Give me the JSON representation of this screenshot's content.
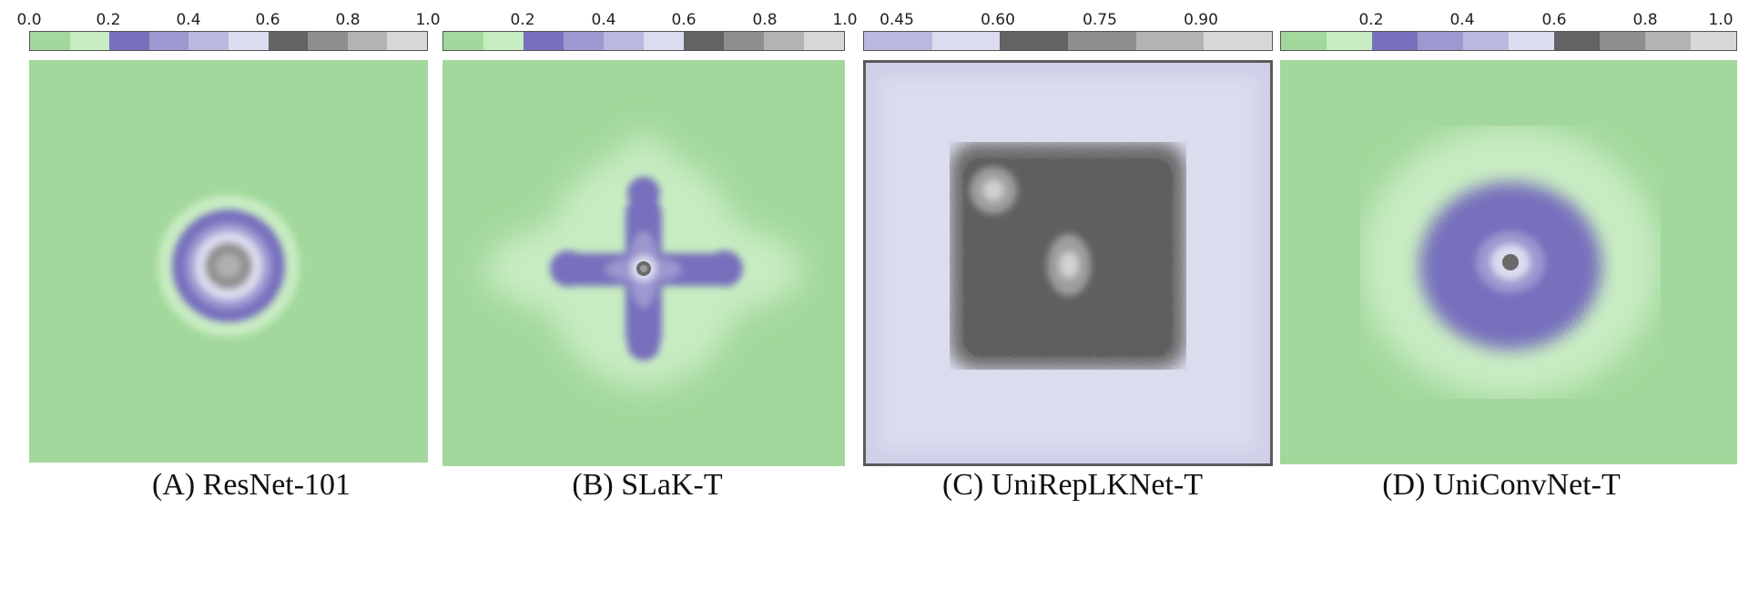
{
  "chart_data": [
    {
      "type": "heatmap",
      "title": "(A) ResNet-101",
      "colorbar": {
        "ticks": [
          "0.0",
          "0.2",
          "0.4",
          "0.6",
          "0.8",
          "1.0"
        ],
        "range": [
          0.0,
          1.0
        ],
        "colors": [
          "#a2d89b",
          "#c8ecc2",
          "#7770bd",
          "#9d98d0",
          "#b9b8e0",
          "#dcdcef",
          "#636363",
          "#8e8e8e",
          "#b3b3b3",
          "#d7d7d7"
        ]
      },
      "pattern": "centered concentric rings"
    },
    {
      "type": "heatmap",
      "title": "(B) SLaK-T",
      "colorbar": {
        "ticks": [
          "0.2",
          "0.4",
          "0.6",
          "0.8",
          "1.0"
        ],
        "range": [
          0.0,
          1.0
        ],
        "colors": [
          "#a2d89b",
          "#c8ecc2",
          "#7770bd",
          "#9d98d0",
          "#b9b8e0",
          "#dcdcef",
          "#636363",
          "#8e8e8e",
          "#b3b3b3",
          "#d7d7d7"
        ]
      },
      "pattern": "cross shaped"
    },
    {
      "type": "heatmap",
      "title": "(C) UniRepLKNet-T",
      "colorbar": {
        "ticks": [
          "0.45",
          "0.60",
          "0.75",
          "0.90"
        ],
        "range": [
          0.4,
          1.0
        ],
        "colors": [
          "#b9b8e0",
          "#dcdcef",
          "#636363",
          "#8e8e8e",
          "#b3b3b3",
          "#d7d7d7"
        ]
      },
      "pattern": "large square"
    },
    {
      "type": "heatmap",
      "title": "(D) UniConvNet-T",
      "colorbar": {
        "ticks": [
          "0.2",
          "0.4",
          "0.6",
          "0.8",
          "1.0"
        ],
        "range": [
          0.0,
          1.0
        ],
        "colors": [
          "#a2d89b",
          "#c8ecc2",
          "#7770bd",
          "#9d98d0",
          "#b9b8e0",
          "#dcdcef",
          "#636363",
          "#8e8e8e",
          "#b3b3b3",
          "#d7d7d7"
        ]
      },
      "pattern": "centered diffuse blob"
    }
  ]
}
